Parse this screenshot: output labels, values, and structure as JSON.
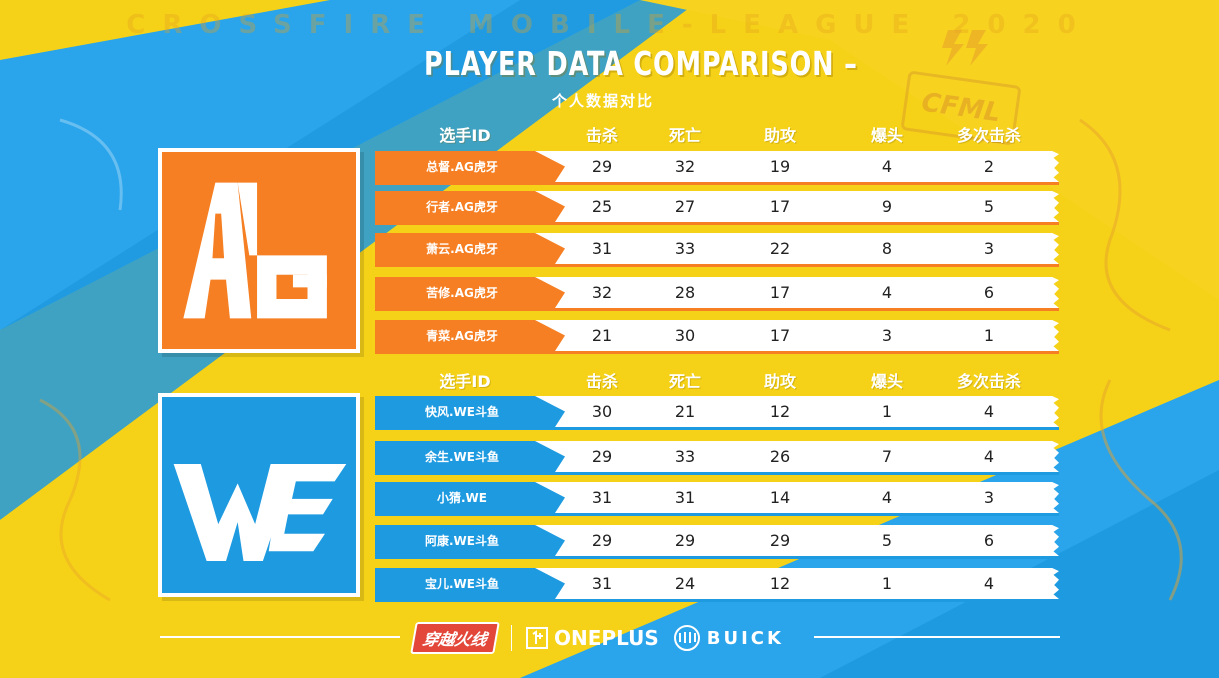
{
  "watermark": "CROSSFIRE MOBILE-LEAGUE 2020",
  "title": "PLAYER DATA COMPARISON –",
  "subtitle": "个人数据对比",
  "badge": "CFML",
  "columns": [
    "选手ID",
    "击杀",
    "死亡",
    "助攻",
    "爆头",
    "多次击杀"
  ],
  "colors": {
    "ag": "#f57f22",
    "we": "#1e9ae0",
    "background": "#f5d218"
  },
  "teams": [
    {
      "logo_text": "AG",
      "rows": [
        {
          "name": "总督.AG虎牙",
          "kills": "29",
          "deaths": "32",
          "assists": "19",
          "headshots": "4",
          "multikills": "2"
        },
        {
          "name": "行者.AG虎牙",
          "kills": "25",
          "deaths": "27",
          "assists": "17",
          "headshots": "9",
          "multikills": "5"
        },
        {
          "name": "萧云.AG虎牙",
          "kills": "31",
          "deaths": "33",
          "assists": "22",
          "headshots": "8",
          "multikills": "3"
        },
        {
          "name": "苦修.AG虎牙",
          "kills": "32",
          "deaths": "28",
          "assists": "17",
          "headshots": "4",
          "multikills": "6"
        },
        {
          "name": "青菜.AG虎牙",
          "kills": "21",
          "deaths": "30",
          "assists": "17",
          "headshots": "3",
          "multikills": "1"
        }
      ]
    },
    {
      "logo_text": "WE",
      "rows": [
        {
          "name": "快风.WE斗鱼",
          "kills": "30",
          "deaths": "21",
          "assists": "12",
          "headshots": "1",
          "multikills": "4"
        },
        {
          "name": "余生.WE斗鱼",
          "kills": "29",
          "deaths": "33",
          "assists": "26",
          "headshots": "7",
          "multikills": "4"
        },
        {
          "name": "小猜.WE",
          "kills": "31",
          "deaths": "31",
          "assists": "14",
          "headshots": "4",
          "multikills": "3"
        },
        {
          "name": "阿康.WE斗鱼",
          "kills": "29",
          "deaths": "29",
          "assists": "29",
          "headshots": "5",
          "multikills": "6"
        },
        {
          "name": "宝儿.WE斗鱼",
          "kills": "31",
          "deaths": "24",
          "assists": "12",
          "headshots": "1",
          "multikills": "4"
        }
      ]
    }
  ],
  "sponsors": {
    "cf": "穿越火线",
    "oneplus": "ONEPLUS",
    "buick": "BUICK"
  }
}
